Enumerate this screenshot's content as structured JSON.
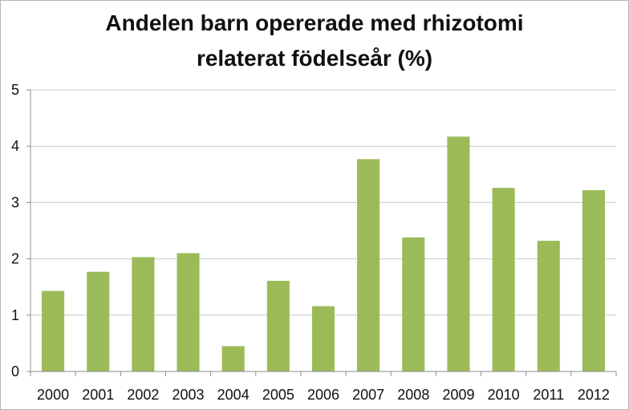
{
  "chart_data": {
    "type": "bar",
    "title_lines": [
      "Andelen barn opererade med rhizotomi",
      "relaterat födelseår (%)"
    ],
    "xlabel": "",
    "ylabel": "",
    "categories": [
      "2000",
      "2001",
      "2002",
      "2003",
      "2004",
      "2005",
      "2006",
      "2007",
      "2008",
      "2009",
      "2010",
      "2011",
      "2012"
    ],
    "values": [
      1.43,
      1.77,
      2.03,
      2.1,
      0.45,
      1.61,
      1.16,
      3.77,
      2.38,
      4.17,
      3.26,
      2.32,
      3.22
    ],
    "ylim": [
      0,
      5
    ],
    "yticks": [
      "0",
      "1",
      "2",
      "3",
      "4",
      "5"
    ],
    "grid": true,
    "legend": "none",
    "bar_color": "#9bbb59",
    "grid_color": "#c8c8c8"
  }
}
